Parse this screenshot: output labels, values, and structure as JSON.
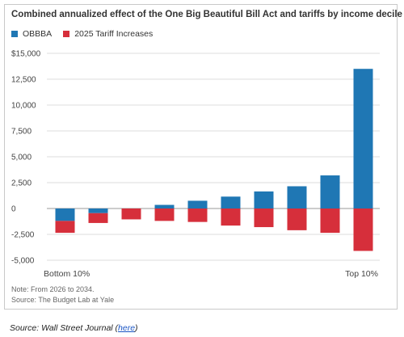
{
  "chart_data": {
    "type": "bar",
    "title": "Combined annualized effect of the One Big Beautiful Bill Act and tariffs by income decile",
    "categories": [
      "Bottom 10%",
      "",
      "",
      "",
      "",
      "",
      "",
      "",
      "",
      "Top 10%"
    ],
    "series": [
      {
        "name": "OBBBA",
        "color": "#1f77b4",
        "values": [
          -1200,
          -450,
          0,
          350,
          750,
          1150,
          1650,
          2150,
          3200,
          13500
        ]
      },
      {
        "name": "2025 Tariff Increases",
        "color": "#d62f3b",
        "values": [
          -1150,
          -950,
          -1050,
          -1200,
          -1300,
          -1650,
          -1800,
          -2100,
          -2350,
          -4100
        ]
      }
    ],
    "stacked": true,
    "ylim": [
      -5000,
      15000
    ],
    "yticks": [
      15000,
      12500,
      10000,
      7500,
      5000,
      2500,
      0,
      -2500,
      -5000
    ],
    "ytick_labels": [
      "$15,000",
      "12,500",
      "10,000",
      "7,500",
      "5,000",
      "2,500",
      "0",
      "-2,500",
      "-5,000"
    ],
    "grid": true,
    "legend": "top-left",
    "xlabel_left": "Bottom 10%",
    "xlabel_right": "Top 10%"
  },
  "notes": {
    "line1": "Note: From 2026 to 2034.",
    "line2": "Source: The Budget Lab at Yale"
  },
  "source": {
    "prefix": "Source: Wall Street Journal (",
    "link": "here",
    "suffix": ")"
  }
}
